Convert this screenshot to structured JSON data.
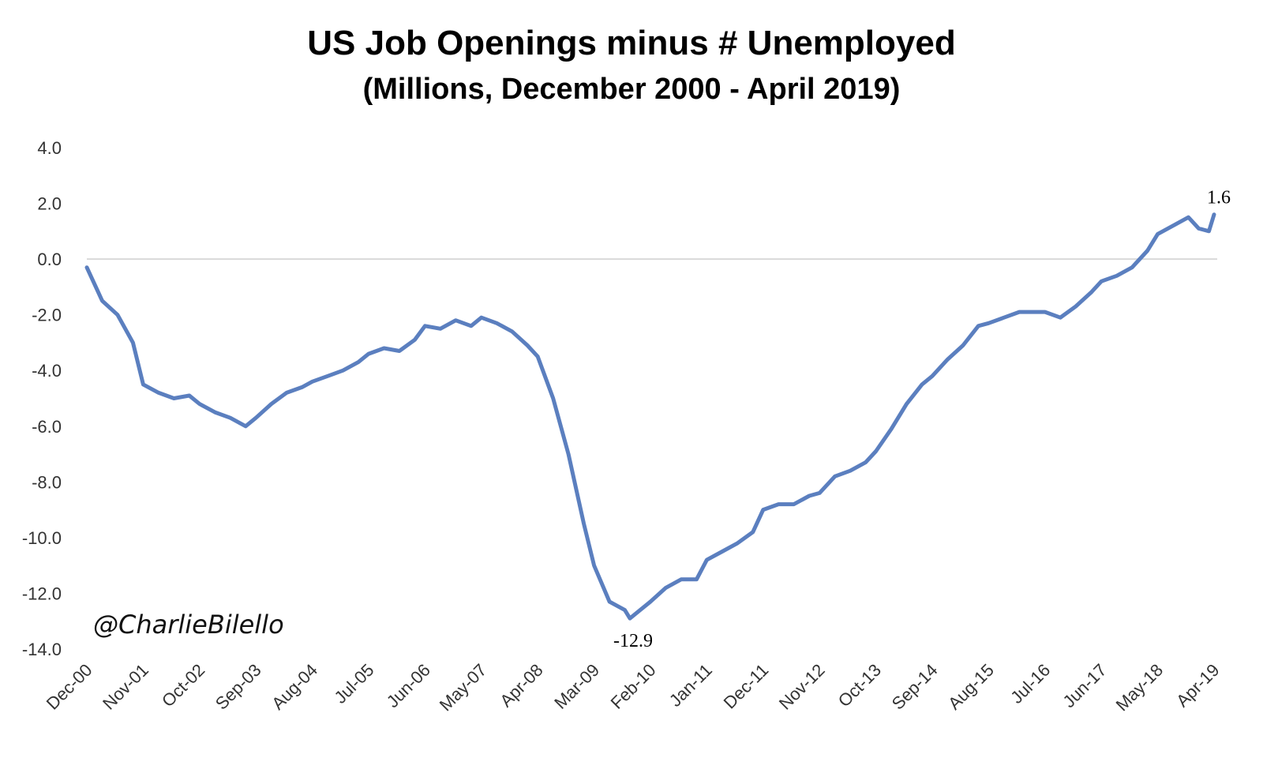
{
  "chart_data": {
    "type": "line",
    "title": "US Job Openings minus # Unemployed",
    "subtitle": "(Millions, December 2000 - April 2019)",
    "ylim": [
      -14,
      4
    ],
    "yticks": [
      "4.0",
      "2.0",
      "0.0",
      "-2.0",
      "-4.0",
      "-6.0",
      "-8.0",
      "-10.0",
      "-12.0",
      "-14.0"
    ],
    "ytick_values": [
      4,
      2,
      0,
      -2,
      -4,
      -6,
      -8,
      -10,
      -12,
      -14
    ],
    "xtick_labels": [
      "Dec-00",
      "Nov-01",
      "Oct-02",
      "Sep-03",
      "Aug-04",
      "Jul-05",
      "Jun-06",
      "May-07",
      "Apr-08",
      "Mar-09",
      "Feb-10",
      "Jan-11",
      "Dec-11",
      "Nov-12",
      "Oct-13",
      "Sep-14",
      "Aug-15",
      "Jul-16",
      "Jun-17",
      "May-18",
      "Apr-19"
    ],
    "x_start": "Dec-00",
    "x_end": "Apr-19",
    "reference_line": 0,
    "line_color": "#5b7fbf",
    "grid": false,
    "series": [
      {
        "points": [
          [
            "Dec-00",
            -0.3
          ],
          [
            "Mar-01",
            -1.5
          ],
          [
            "Jun-01",
            -2.0
          ],
          [
            "Sep-01",
            -3.0
          ],
          [
            "Nov-01",
            -4.5
          ],
          [
            "Feb-02",
            -4.8
          ],
          [
            "May-02",
            -5.0
          ],
          [
            "Aug-02",
            -4.9
          ],
          [
            "Oct-02",
            -5.2
          ],
          [
            "Jan-03",
            -5.5
          ],
          [
            "Apr-03",
            -5.7
          ],
          [
            "Jul-03",
            -6.0
          ],
          [
            "Sep-03",
            -5.7
          ],
          [
            "Dec-03",
            -5.2
          ],
          [
            "Mar-04",
            -4.8
          ],
          [
            "Jun-04",
            -4.6
          ],
          [
            "Aug-04",
            -4.4
          ],
          [
            "Nov-04",
            -4.2
          ],
          [
            "Feb-05",
            -4.0
          ],
          [
            "May-05",
            -3.7
          ],
          [
            "Jul-05",
            -3.4
          ],
          [
            "Oct-05",
            -3.2
          ],
          [
            "Jan-06",
            -3.3
          ],
          [
            "Apr-06",
            -2.9
          ],
          [
            "Jun-06",
            -2.4
          ],
          [
            "Sep-06",
            -2.5
          ],
          [
            "Dec-06",
            -2.2
          ],
          [
            "Mar-07",
            -2.4
          ],
          [
            "May-07",
            -2.1
          ],
          [
            "Aug-07",
            -2.3
          ],
          [
            "Nov-07",
            -2.6
          ],
          [
            "Feb-08",
            -3.1
          ],
          [
            "Apr-08",
            -3.5
          ],
          [
            "Jul-08",
            -5.0
          ],
          [
            "Oct-08",
            -7.0
          ],
          [
            "Jan-09",
            -9.5
          ],
          [
            "Mar-09",
            -11.0
          ],
          [
            "Jun-09",
            -12.3
          ],
          [
            "Sep-09",
            -12.6
          ],
          [
            "Oct-09",
            -12.9
          ],
          [
            "Dec-09",
            -12.6
          ],
          [
            "Feb-10",
            -12.3
          ],
          [
            "May-10",
            -11.8
          ],
          [
            "Aug-10",
            -11.5
          ],
          [
            "Nov-10",
            -11.5
          ],
          [
            "Jan-11",
            -10.8
          ],
          [
            "Apr-11",
            -10.5
          ],
          [
            "Jul-11",
            -10.2
          ],
          [
            "Oct-11",
            -9.8
          ],
          [
            "Dec-11",
            -9.0
          ],
          [
            "Mar-12",
            -8.8
          ],
          [
            "Jun-12",
            -8.8
          ],
          [
            "Sep-12",
            -8.5
          ],
          [
            "Nov-12",
            -8.4
          ],
          [
            "Feb-13",
            -7.8
          ],
          [
            "May-13",
            -7.6
          ],
          [
            "Aug-13",
            -7.3
          ],
          [
            "Oct-13",
            -6.9
          ],
          [
            "Jan-14",
            -6.1
          ],
          [
            "Apr-14",
            -5.2
          ],
          [
            "Jul-14",
            -4.5
          ],
          [
            "Sep-14",
            -4.2
          ],
          [
            "Dec-14",
            -3.6
          ],
          [
            "Mar-15",
            -3.1
          ],
          [
            "Jun-15",
            -2.4
          ],
          [
            "Aug-15",
            -2.3
          ],
          [
            "Nov-15",
            -2.1
          ],
          [
            "Feb-16",
            -1.9
          ],
          [
            "May-16",
            -1.9
          ],
          [
            "Jul-16",
            -1.9
          ],
          [
            "Oct-16",
            -2.1
          ],
          [
            "Jan-17",
            -1.7
          ],
          [
            "Apr-17",
            -1.2
          ],
          [
            "Jun-17",
            -0.8
          ],
          [
            "Sep-17",
            -0.6
          ],
          [
            "Dec-17",
            -0.3
          ],
          [
            "Mar-18",
            0.3
          ],
          [
            "May-18",
            0.9
          ],
          [
            "Aug-18",
            1.2
          ],
          [
            "Nov-18",
            1.5
          ],
          [
            "Jan-19",
            1.1
          ],
          [
            "Mar-19",
            1.0
          ],
          [
            "Apr-19",
            1.6
          ]
        ]
      }
    ],
    "annotations": [
      {
        "label": "1.6",
        "x": "Apr-19",
        "y": 1.6
      },
      {
        "label": "-12.9",
        "x": "Oct-09",
        "y": -12.9
      }
    ],
    "watermark": "@CharlieBilello"
  }
}
